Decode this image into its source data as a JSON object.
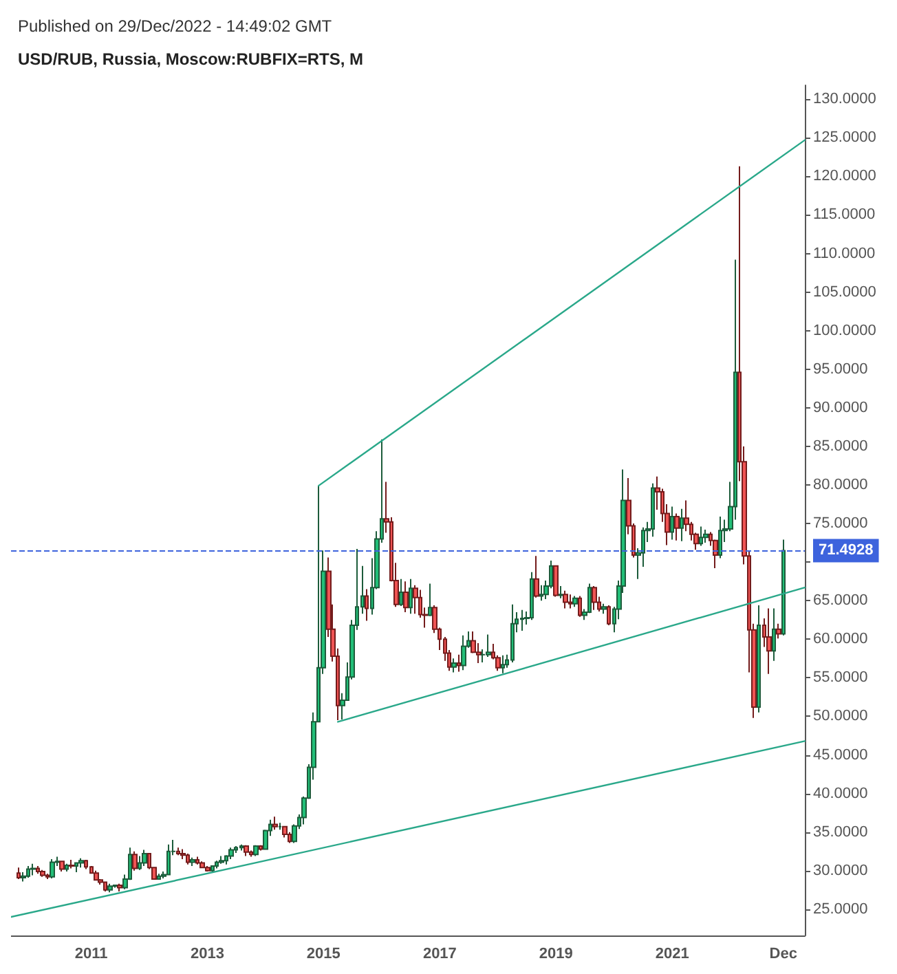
{
  "chart_data": {
    "type": "candlestick",
    "subtitle": "Published on 29/Dec/2022 - 14:49:02 GMT",
    "title": "USD/RUB, Russia, Moscow:RUBFIX=RTS, M",
    "x": [
      "2009-10",
      "2009-11",
      "2009-12",
      "2010-01",
      "2010-02",
      "2010-03",
      "2010-04",
      "2010-05",
      "2010-06",
      "2010-07",
      "2010-08",
      "2010-09",
      "2010-10",
      "2010-11",
      "2010-12",
      "2011-01",
      "2011-02",
      "2011-03",
      "2011-04",
      "2011-05",
      "2011-06",
      "2011-07",
      "2011-08",
      "2011-09",
      "2011-10",
      "2011-11",
      "2011-12",
      "2012-01",
      "2012-02",
      "2012-03",
      "2012-04",
      "2012-05",
      "2012-06",
      "2012-07",
      "2012-08",
      "2012-09",
      "2012-10",
      "2012-11",
      "2012-12",
      "2013-01",
      "2013-02",
      "2013-03",
      "2013-04",
      "2013-05",
      "2013-06",
      "2013-07",
      "2013-08",
      "2013-09",
      "2013-10",
      "2013-11",
      "2013-12",
      "2014-01",
      "2014-02",
      "2014-03",
      "2014-04",
      "2014-05",
      "2014-06",
      "2014-07",
      "2014-08",
      "2014-09",
      "2014-10",
      "2014-11",
      "2014-12",
      "2015-01",
      "2015-02",
      "2015-03",
      "2015-04",
      "2015-05",
      "2015-06",
      "2015-07",
      "2015-08",
      "2015-09",
      "2015-10",
      "2015-11",
      "2015-12",
      "2016-01",
      "2016-02",
      "2016-03",
      "2016-04",
      "2016-05",
      "2016-06",
      "2016-07",
      "2016-08",
      "2016-09",
      "2016-10",
      "2016-11",
      "2016-12",
      "2017-01",
      "2017-02",
      "2017-03",
      "2017-04",
      "2017-05",
      "2017-06",
      "2017-07",
      "2017-08",
      "2017-09",
      "2017-10",
      "2017-11",
      "2017-12",
      "2018-01",
      "2018-02",
      "2018-03",
      "2018-04",
      "2018-05",
      "2018-06",
      "2018-07",
      "2018-08",
      "2018-09",
      "2018-10",
      "2018-11",
      "2018-12",
      "2019-01",
      "2019-02",
      "2019-03",
      "2019-04",
      "2019-05",
      "2019-06",
      "2019-07",
      "2019-08",
      "2019-09",
      "2019-10",
      "2019-11",
      "2019-12",
      "2020-01",
      "2020-02",
      "2020-03",
      "2020-04",
      "2020-05",
      "2020-06",
      "2020-07",
      "2020-08",
      "2020-09",
      "2020-10",
      "2020-11",
      "2020-12",
      "2021-01",
      "2021-02",
      "2021-03",
      "2021-04",
      "2021-05",
      "2021-06",
      "2021-07",
      "2021-08",
      "2021-09",
      "2021-10",
      "2021-11",
      "2021-12",
      "2022-01",
      "2022-02",
      "2022-03",
      "2022-04",
      "2022-05",
      "2022-06",
      "2022-07",
      "2022-08",
      "2022-09",
      "2022-10",
      "2022-11",
      "2022-12"
    ],
    "ohlc": [
      [
        29.7,
        30.4,
        28.9,
        29.1
      ],
      [
        29.1,
        29.8,
        28.6,
        29.3
      ],
      [
        29.3,
        30.6,
        29.1,
        30.2
      ],
      [
        30.2,
        30.9,
        29.4,
        30.3
      ],
      [
        30.3,
        30.6,
        29.6,
        29.9
      ],
      [
        29.9,
        30.1,
        29.2,
        29.4
      ],
      [
        29.4,
        29.6,
        28.9,
        29.2
      ],
      [
        29.2,
        31.5,
        29.0,
        31.1
      ],
      [
        31.1,
        31.8,
        30.6,
        31.2
      ],
      [
        31.2,
        31.3,
        29.9,
        30.2
      ],
      [
        30.2,
        30.9,
        29.9,
        30.7
      ],
      [
        30.7,
        31.4,
        30.3,
        30.6
      ],
      [
        30.6,
        31.1,
        29.8,
        31.0
      ],
      [
        31.0,
        31.6,
        30.4,
        31.3
      ],
      [
        31.3,
        31.4,
        30.2,
        30.5
      ],
      [
        30.5,
        30.6,
        29.7,
        29.7
      ],
      [
        29.7,
        30.0,
        28.7,
        28.8
      ],
      [
        28.8,
        28.9,
        28.2,
        28.5
      ],
      [
        28.5,
        28.6,
        27.3,
        27.5
      ],
      [
        27.5,
        28.3,
        27.2,
        28.0
      ],
      [
        28.0,
        28.2,
        27.8,
        28.1
      ],
      [
        28.1,
        28.3,
        27.3,
        27.8
      ],
      [
        27.8,
        29.5,
        27.6,
        28.9
      ],
      [
        28.9,
        33.0,
        28.8,
        32.1
      ],
      [
        32.1,
        32.5,
        30.0,
        30.3
      ],
      [
        30.3,
        31.9,
        30.1,
        31.0
      ],
      [
        31.0,
        32.7,
        30.6,
        32.2
      ],
      [
        32.2,
        32.3,
        30.2,
        30.4
      ],
      [
        30.4,
        30.5,
        28.9,
        28.9
      ],
      [
        28.9,
        29.6,
        28.9,
        29.3
      ],
      [
        29.3,
        29.9,
        29.0,
        29.5
      ],
      [
        29.5,
        33.4,
        29.4,
        32.5
      ],
      [
        32.5,
        34.0,
        32.0,
        32.5
      ],
      [
        32.5,
        33.0,
        32.0,
        32.2
      ],
      [
        32.2,
        32.8,
        31.5,
        32.0
      ],
      [
        32.0,
        32.2,
        30.8,
        31.1
      ],
      [
        31.1,
        31.7,
        30.6,
        31.4
      ],
      [
        31.4,
        31.8,
        30.8,
        31.0
      ],
      [
        31.0,
        31.2,
        30.4,
        30.4
      ],
      [
        30.4,
        30.6,
        29.9,
        30.0
      ],
      [
        30.0,
        30.7,
        29.9,
        30.6
      ],
      [
        30.6,
        31.3,
        30.3,
        31.1
      ],
      [
        31.1,
        31.9,
        30.9,
        31.3
      ],
      [
        31.3,
        32.0,
        30.8,
        31.9
      ],
      [
        31.9,
        33.0,
        31.5,
        32.7
      ],
      [
        32.7,
        33.2,
        32.3,
        33.0
      ],
      [
        33.0,
        33.4,
        32.6,
        33.2
      ],
      [
        33.2,
        33.3,
        31.9,
        32.4
      ],
      [
        32.4,
        32.6,
        31.8,
        32.1
      ],
      [
        32.1,
        33.3,
        31.9,
        33.2
      ],
      [
        33.2,
        33.3,
        32.6,
        32.8
      ],
      [
        32.8,
        35.3,
        32.7,
        35.2
      ],
      [
        35.2,
        36.6,
        34.5,
        36.0
      ],
      [
        36.0,
        37.0,
        35.3,
        35.7
      ],
      [
        35.7,
        36.2,
        35.3,
        35.7
      ],
      [
        35.7,
        35.8,
        34.3,
        34.7
      ],
      [
        34.7,
        35.0,
        33.6,
        33.8
      ],
      [
        33.8,
        36.0,
        33.6,
        35.8
      ],
      [
        35.8,
        37.3,
        35.4,
        36.9
      ],
      [
        36.9,
        39.6,
        36.0,
        39.4
      ],
      [
        39.4,
        43.8,
        39.3,
        43.4
      ],
      [
        43.4,
        50.5,
        41.8,
        49.3
      ],
      [
        49.3,
        79.9,
        49.3,
        56.3
      ],
      [
        56.3,
        71.5,
        55.5,
        68.8
      ],
      [
        68.8,
        70.6,
        60.3,
        61.3
      ],
      [
        61.3,
        64.5,
        57.1,
        57.8
      ],
      [
        57.8,
        58.8,
        49.5,
        51.4
      ],
      [
        51.4,
        53.0,
        49.6,
        52.1
      ],
      [
        52.1,
        57.0,
        52.0,
        55.1
      ],
      [
        55.1,
        62.5,
        54.8,
        61.8
      ],
      [
        61.8,
        71.7,
        61.2,
        64.2
      ],
      [
        64.2,
        69.5,
        63.3,
        65.6
      ],
      [
        65.6,
        66.5,
        62.4,
        64.0
      ],
      [
        64.0,
        70.5,
        63.2,
        66.7
      ],
      [
        66.7,
        74.0,
        66.5,
        73.0
      ],
      [
        73.0,
        85.9,
        72.5,
        75.6
      ],
      [
        75.6,
        80.4,
        73.8,
        75.2
      ],
      [
        75.2,
        75.8,
        67.5,
        67.6
      ],
      [
        67.6,
        69.9,
        64.2,
        64.5
      ],
      [
        64.5,
        67.8,
        64.3,
        66.1
      ],
      [
        66.1,
        67.5,
        63.5,
        64.1
      ],
      [
        64.1,
        67.8,
        63.3,
        66.6
      ],
      [
        66.6,
        67.0,
        63.3,
        65.4
      ],
      [
        65.4,
        66.4,
        62.8,
        63.2
      ],
      [
        63.2,
        64.1,
        61.5,
        63.1
      ],
      [
        63.1,
        67.2,
        63.0,
        64.1
      ],
      [
        64.1,
        64.4,
        60.8,
        61.3
      ],
      [
        61.3,
        61.5,
        58.6,
        60.0
      ],
      [
        60.0,
        60.3,
        57.2,
        58.2
      ],
      [
        58.2,
        58.6,
        55.9,
        56.4
      ],
      [
        56.4,
        57.5,
        55.7,
        56.9
      ],
      [
        56.9,
        58.0,
        55.8,
        56.6
      ],
      [
        56.6,
        60.5,
        56.0,
        59.1
      ],
      [
        59.1,
        61.0,
        58.9,
        59.8
      ],
      [
        59.8,
        61.0,
        58.2,
        58.3
      ],
      [
        58.3,
        59.5,
        56.9,
        58.0
      ],
      [
        58.0,
        58.7,
        57.0,
        58.0
      ],
      [
        58.0,
        60.6,
        57.7,
        58.3
      ],
      [
        58.3,
        59.4,
        57.4,
        57.6
      ],
      [
        57.6,
        57.9,
        55.9,
        56.3
      ],
      [
        56.3,
        57.9,
        55.6,
        56.7
      ],
      [
        56.7,
        58.0,
        56.3,
        57.3
      ],
      [
        57.3,
        64.5,
        57.0,
        62.0
      ],
      [
        62.0,
        63.5,
        60.9,
        62.6
      ],
      [
        62.6,
        63.8,
        61.1,
        62.7
      ],
      [
        62.7,
        63.6,
        61.9,
        62.8
      ],
      [
        62.8,
        68.7,
        62.5,
        67.8
      ],
      [
        67.8,
        70.8,
        65.4,
        65.6
      ],
      [
        65.6,
        67.0,
        65.0,
        65.8
      ],
      [
        65.8,
        67.6,
        65.2,
        66.9
      ],
      [
        66.9,
        70.2,
        66.6,
        69.5
      ],
      [
        69.5,
        69.6,
        65.5,
        65.7
      ],
      [
        65.7,
        66.9,
        65.3,
        65.8
      ],
      [
        65.8,
        66.3,
        64.0,
        64.8
      ],
      [
        64.8,
        65.8,
        64.0,
        64.6
      ],
      [
        64.6,
        65.6,
        64.2,
        65.3
      ],
      [
        65.3,
        65.6,
        62.9,
        63.1
      ],
      [
        63.1,
        63.9,
        62.5,
        63.5
      ],
      [
        63.5,
        67.2,
        63.4,
        66.7
      ],
      [
        66.7,
        66.9,
        63.8,
        64.8
      ],
      [
        64.8,
        65.5,
        63.6,
        63.9
      ],
      [
        63.9,
        64.6,
        63.3,
        64.2
      ],
      [
        64.2,
        64.4,
        61.8,
        62.0
      ],
      [
        62.0,
        64.2,
        60.9,
        63.9
      ],
      [
        63.9,
        67.6,
        62.6,
        66.9
      ],
      [
        66.9,
        82.0,
        66.0,
        78.0
      ],
      [
        78.0,
        80.9,
        73.6,
        74.7
      ],
      [
        74.7,
        75.0,
        70.6,
        70.9
      ],
      [
        70.9,
        71.8,
        67.8,
        71.2
      ],
      [
        71.2,
        74.5,
        69.4,
        74.1
      ],
      [
        74.1,
        75.2,
        72.6,
        74.3
      ],
      [
        74.3,
        80.2,
        73.3,
        79.6
      ],
      [
        79.6,
        81.1,
        76.8,
        79.1
      ],
      [
        79.1,
        79.5,
        75.2,
        76.3
      ],
      [
        76.3,
        77.5,
        72.2,
        73.9
      ],
      [
        73.9,
        77.2,
        72.9,
        75.9
      ],
      [
        75.9,
        76.3,
        72.8,
        74.4
      ],
      [
        74.4,
        76.9,
        72.7,
        75.7
      ],
      [
        75.7,
        78.0,
        74.0,
        74.9
      ],
      [
        74.9,
        75.2,
        72.8,
        73.6
      ],
      [
        73.6,
        73.8,
        71.6,
        72.4
      ],
      [
        72.4,
        74.6,
        72.1,
        73.2
      ],
      [
        73.2,
        74.2,
        72.5,
        73.6
      ],
      [
        73.6,
        73.9,
        72.1,
        72.8
      ],
      [
        72.8,
        72.9,
        69.2,
        70.9
      ],
      [
        70.9,
        75.9,
        70.5,
        74.1
      ],
      [
        74.1,
        75.5,
        72.6,
        74.3
      ],
      [
        74.3,
        80.4,
        74.0,
        77.2
      ],
      [
        77.2,
        109.2,
        75.5,
        94.6
      ],
      [
        94.6,
        121.3,
        80.5,
        83.0
      ],
      [
        83.0,
        85.0,
        69.7,
        70.8
      ],
      [
        70.8,
        71.4,
        55.7,
        61.2
      ],
      [
        61.2,
        62.0,
        49.8,
        51.2
      ],
      [
        51.2,
        64.4,
        50.5,
        61.8
      ],
      [
        61.8,
        62.7,
        59.0,
        60.3
      ],
      [
        60.3,
        64.0,
        55.5,
        58.5
      ],
      [
        58.5,
        64.0,
        57.2,
        61.3
      ],
      [
        61.3,
        62.0,
        60.1,
        60.7
      ],
      [
        60.7,
        72.9,
        60.5,
        71.4928
      ]
    ],
    "series": [
      {
        "type": "line",
        "color": "#2aa88a",
        "x": [
          "2009-08-15",
          "2023-04-15"
        ],
        "values": [
          24.0,
          46.8
        ]
      },
      {
        "type": "line",
        "color": "#2aa88a",
        "x": [
          "2015-04",
          "2023-04-15"
        ],
        "values": [
          49.3,
          66.7
        ]
      },
      {
        "type": "line",
        "color": "#2aa88a",
        "x": [
          "2014-12",
          "2023-04-15"
        ],
        "values": [
          79.9,
          124.7
        ]
      }
    ],
    "marker": "none",
    "line_style": "solid",
    "ref_lines": [
      {
        "axis": "y",
        "value": 71.4928,
        "label": "71.4928",
        "color": "#3d63dd",
        "line_style": "dashed"
      }
    ],
    "xlim": [
      "2009-08-15",
      "2023-04-15"
    ],
    "xticks": [
      {
        "value": "2011-01",
        "label": "2011"
      },
      {
        "value": "2013-01",
        "label": "2013"
      },
      {
        "value": "2015-01",
        "label": "2015"
      },
      {
        "value": "2017-01",
        "label": "2017"
      },
      {
        "value": "2019-01",
        "label": "2019"
      },
      {
        "value": "2021-01",
        "label": "2021"
      },
      {
        "value": "2022-12",
        "label": "Dec"
      }
    ],
    "ylim": [
      21.6,
      131.8
    ],
    "yticks": [
      {
        "value": 25,
        "label": "25.0000"
      },
      {
        "value": 30,
        "label": "30.0000"
      },
      {
        "value": 35,
        "label": "35.0000"
      },
      {
        "value": 40,
        "label": "40.0000"
      },
      {
        "value": 45,
        "label": "45.0000"
      },
      {
        "value": 50,
        "label": "50.0000"
      },
      {
        "value": 55,
        "label": "55.0000"
      },
      {
        "value": 60,
        "label": "60.0000"
      },
      {
        "value": 65,
        "label": "65.0000"
      },
      {
        "value": 70,
        "label": null
      },
      {
        "value": 75,
        "label": "75.0000"
      },
      {
        "value": 80,
        "label": "80.0000"
      },
      {
        "value": 85,
        "label": "85.0000"
      },
      {
        "value": 90,
        "label": "90.0000"
      },
      {
        "value": 95,
        "label": "95.0000"
      },
      {
        "value": 100,
        "label": "100.0000"
      },
      {
        "value": 105,
        "label": "105.0000"
      },
      {
        "value": 110,
        "label": "110.0000"
      },
      {
        "value": 115,
        "label": "115.0000"
      },
      {
        "value": 120,
        "label": "120.0000"
      },
      {
        "value": 125,
        "label": "125.0000"
      },
      {
        "value": 130,
        "label": "130.0000"
      }
    ]
  }
}
